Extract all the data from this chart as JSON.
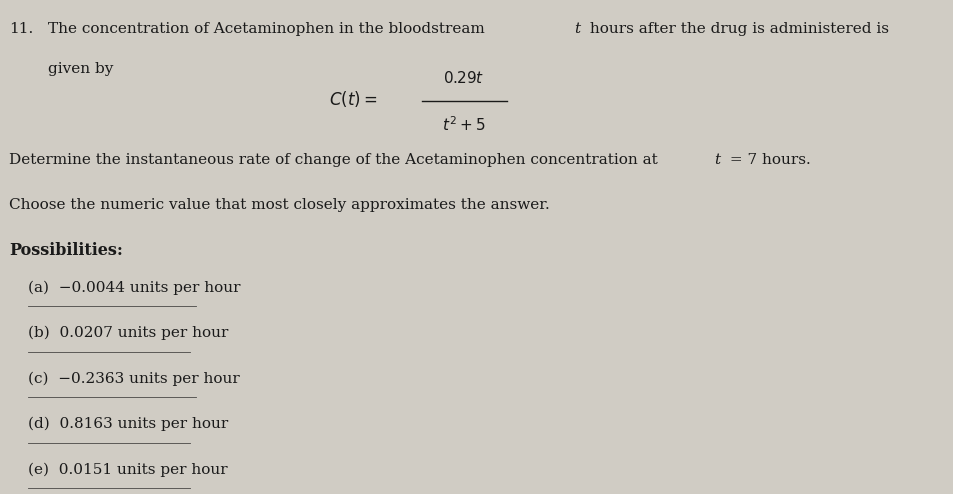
{
  "background_color": "#d0ccc4",
  "text_color": "#1a1a1a",
  "number": "11.",
  "choices": [
    "(a)  −0.0044 units per hour",
    "(b)  0.0207 units per hour",
    "(c)  −0.2363 units per hour",
    "(d)  0.8163 units per hour",
    "(e)  0.0151 units per hour"
  ],
  "bold_label": "Possibilities:",
  "fig_width": 9.54,
  "fig_height": 4.94,
  "dpi": 100
}
